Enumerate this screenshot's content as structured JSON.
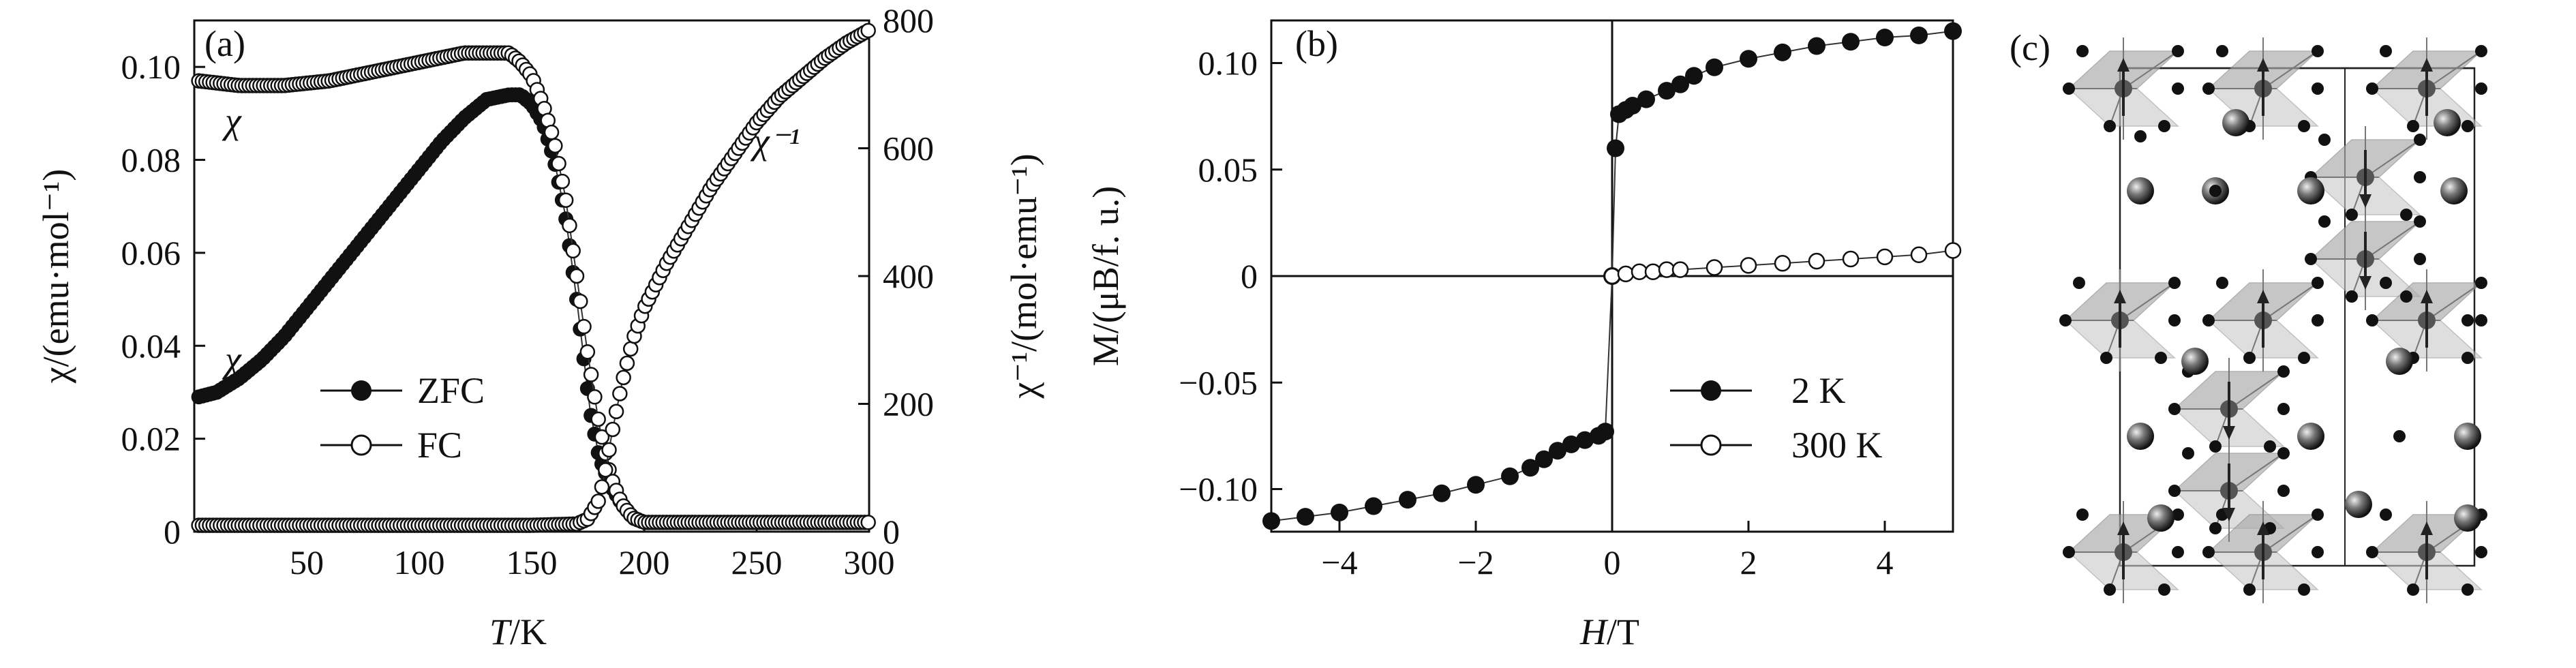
{
  "chart_data": [
    {
      "type": "scatter",
      "panel_label": "(a)",
      "xlabel_var": "T",
      "xlabel_unit": "/K",
      "ylabel_left": "χ/(emu·mol⁻¹)",
      "ylabel_right": "χ⁻¹/(mol·emu⁻¹)",
      "xlim": [
        0,
        300
      ],
      "ylim_left": [
        0,
        0.11
      ],
      "ylim_right": [
        0,
        800
      ],
      "x_ticks": [
        "50",
        "100",
        "150",
        "200",
        "250",
        "300"
      ],
      "y_left_ticks": [
        "0",
        "0.02",
        "0.04",
        "0.06",
        "0.08",
        "0.10"
      ],
      "y_right_ticks": [
        "0",
        "200",
        "400",
        "600",
        "800"
      ],
      "annotations": [
        "χ",
        "χ",
        "χ⁻¹"
      ],
      "legend": {
        "position": "center-left",
        "entries": [
          "ZFC",
          "FC"
        ]
      },
      "series": [
        {
          "name": "ZFC",
          "marker": "filled",
          "axis": "left",
          "x": [
            2,
            10,
            20,
            30,
            40,
            50,
            60,
            70,
            80,
            90,
            100,
            110,
            120,
            130,
            140,
            145,
            150,
            155,
            160,
            165,
            170,
            173,
            176,
            180,
            185,
            190,
            195,
            200,
            220,
            250,
            300
          ],
          "y": [
            0.029,
            0.03,
            0.033,
            0.037,
            0.042,
            0.048,
            0.054,
            0.06,
            0.066,
            0.072,
            0.078,
            0.084,
            0.089,
            0.093,
            0.094,
            0.094,
            0.092,
            0.088,
            0.08,
            0.068,
            0.05,
            0.038,
            0.026,
            0.016,
            0.01,
            0.006,
            0.003,
            0.002,
            0.002,
            0.002,
            0.002
          ]
        },
        {
          "name": "FC",
          "marker": "open",
          "axis": "left",
          "x": [
            2,
            20,
            40,
            60,
            80,
            100,
            120,
            130,
            140,
            145,
            150,
            155,
            160,
            165,
            170,
            175,
            180,
            185,
            190,
            195,
            200,
            220,
            250,
            300
          ],
          "y": [
            0.097,
            0.096,
            0.096,
            0.097,
            0.099,
            0.101,
            0.103,
            0.103,
            0.103,
            0.101,
            0.098,
            0.092,
            0.084,
            0.072,
            0.055,
            0.038,
            0.023,
            0.012,
            0.006,
            0.003,
            0.002,
            0.002,
            0.002,
            0.002
          ]
        },
        {
          "name": "χ⁻¹",
          "marker": "open",
          "axis": "right",
          "x": [
            2,
            50,
            100,
            150,
            170,
            175,
            180,
            183,
            186,
            190,
            195,
            200,
            210,
            220,
            230,
            240,
            250,
            260,
            270,
            280,
            290,
            300
          ],
          "y": [
            10,
            10,
            10,
            10,
            12,
            20,
            50,
            100,
            160,
            230,
            300,
            350,
            420,
            480,
            540,
            590,
            640,
            680,
            710,
            740,
            765,
            785
          ]
        }
      ]
    },
    {
      "type": "scatter",
      "panel_label": "(b)",
      "xlabel_var": "H",
      "xlabel_unit": "/T",
      "ylabel": "M/(μB/f. u.)",
      "xlim": [
        -5,
        5
      ],
      "ylim": [
        -0.12,
        0.12
      ],
      "x_ticks": [
        "−4",
        "−2",
        "0",
        "2",
        "4"
      ],
      "y_ticks": [
        "−0.10",
        "−0.05",
        "0",
        "0.05",
        "0.10"
      ],
      "legend": {
        "position": "bottom-right",
        "entries": [
          "2 K",
          "300 K"
        ]
      },
      "series": [
        {
          "name": "2 K",
          "marker": "filled",
          "x": [
            -5,
            -4.5,
            -4,
            -3.5,
            -3,
            -2.5,
            -2,
            -1.5,
            -1.2,
            -1.0,
            -0.8,
            -0.6,
            -0.4,
            -0.2,
            -0.1,
            0,
            0.05,
            0.1,
            0.2,
            0.3,
            0.5,
            0.8,
            1.0,
            1.2,
            1.5,
            2,
            2.5,
            3,
            3.5,
            4,
            4.5,
            5
          ],
          "y": [
            -0.115,
            -0.113,
            -0.111,
            -0.108,
            -0.105,
            -0.102,
            -0.098,
            -0.094,
            -0.09,
            -0.086,
            -0.082,
            -0.079,
            -0.077,
            -0.075,
            -0.073,
            0.0,
            0.06,
            0.076,
            0.078,
            0.08,
            0.083,
            0.087,
            0.09,
            0.094,
            0.098,
            0.102,
            0.105,
            0.108,
            0.11,
            0.112,
            0.113,
            0.115
          ]
        },
        {
          "name": "300 K",
          "marker": "open",
          "x": [
            0,
            0.2,
            0.4,
            0.6,
            0.8,
            1.0,
            1.5,
            2.0,
            2.5,
            3.0,
            3.5,
            4.0,
            4.5,
            5.0
          ],
          "y": [
            0.0,
            0.001,
            0.002,
            0.002,
            0.003,
            0.003,
            0.004,
            0.005,
            0.006,
            0.007,
            0.008,
            0.009,
            0.01,
            0.012
          ]
        }
      ]
    }
  ],
  "panel_c": {
    "label": "(c)"
  }
}
